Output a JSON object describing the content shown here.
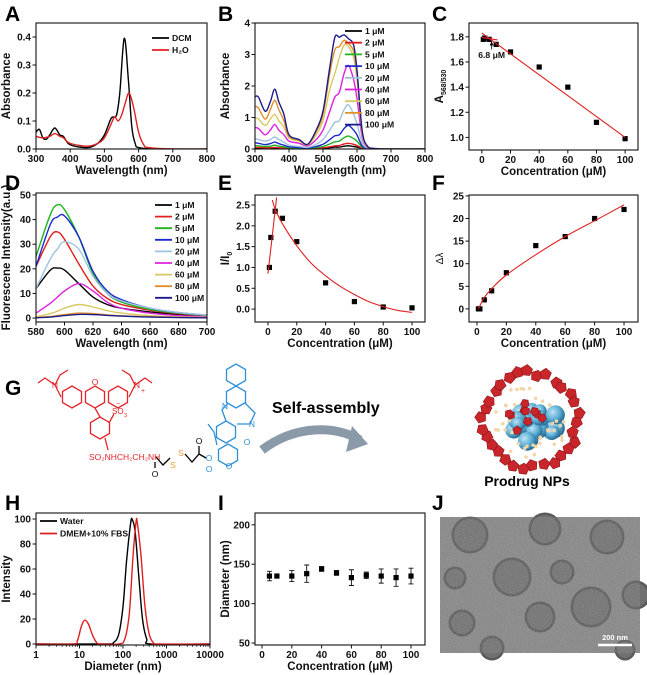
{
  "chart_data": [
    {
      "panel": "A",
      "type": "line",
      "xlabel": "Wavelength (nm)",
      "ylabel": "Absorbance",
      "xlim": [
        300,
        800
      ],
      "ylim": [
        0,
        0.45
      ],
      "xticks": [
        "300",
        "400",
        "500",
        "600",
        "700",
        "800"
      ],
      "yticks": [
        "0.0",
        "0.1",
        "0.2",
        "0.3",
        "0.4"
      ],
      "legend": "top-right",
      "series": [
        {
          "name": "DCM",
          "color": "#000000",
          "x": [
            300,
            310,
            320,
            330,
            340,
            355,
            370,
            380,
            400,
            450,
            480,
            500,
            520,
            535,
            545,
            558,
            570,
            580,
            590,
            600,
            650,
            800
          ],
          "y": [
            0.06,
            0.07,
            0.04,
            0.035,
            0.05,
            0.075,
            0.05,
            0.045,
            0.015,
            0.005,
            0.02,
            0.05,
            0.11,
            0.12,
            0.2,
            0.395,
            0.25,
            0.08,
            0.02,
            0.005,
            0,
            0
          ]
        },
        {
          "name": "H₂O",
          "color": "#e02020",
          "x": [
            300,
            320,
            340,
            355,
            370,
            380,
            400,
            450,
            480,
            500,
            520,
            530,
            540,
            550,
            560,
            572,
            585,
            600,
            615,
            630,
            700,
            800
          ],
          "y": [
            0.045,
            0.04,
            0.045,
            0.055,
            0.045,
            0.04,
            0.02,
            0.01,
            0.02,
            0.04,
            0.09,
            0.115,
            0.1,
            0.12,
            0.16,
            0.2,
            0.15,
            0.06,
            0.015,
            0.005,
            0,
            0
          ]
        }
      ]
    },
    {
      "panel": "B",
      "type": "line",
      "xlabel": "Wavelength (nm)",
      "ylabel": "Absorbance",
      "xlim": [
        300,
        800
      ],
      "ylim": [
        0,
        4
      ],
      "xticks": [
        "300",
        "400",
        "500",
        "600",
        "700",
        "800"
      ],
      "yticks": [
        "0",
        "1",
        "2",
        "3",
        "4"
      ],
      "legend": "top-right",
      "x": [
        300,
        310,
        330,
        345,
        358,
        370,
        385,
        400,
        430,
        455,
        480,
        500,
        520,
        535,
        548,
        562,
        575,
        590,
        600,
        615,
        630,
        650,
        700,
        800
      ],
      "series": [
        {
          "name": "1 μM",
          "color": "#000000",
          "y": [
            0.03,
            0.03,
            0.02,
            0.02,
            0.03,
            0.02,
            0.02,
            0.01,
            0.01,
            0,
            0.01,
            0.02,
            0.04,
            0.06,
            0.06,
            0.09,
            0.1,
            0.08,
            0.06,
            0.02,
            0,
            0,
            0,
            0
          ]
        },
        {
          "name": "2 μM",
          "color": "#e02020",
          "y": [
            0.05,
            0.05,
            0.04,
            0.04,
            0.05,
            0.04,
            0.03,
            0.02,
            0.01,
            0.01,
            0.02,
            0.04,
            0.07,
            0.1,
            0.11,
            0.16,
            0.18,
            0.15,
            0.11,
            0.03,
            0,
            0,
            0,
            0
          ]
        },
        {
          "name": "5 μM",
          "color": "#1db41d",
          "y": [
            0.11,
            0.1,
            0.08,
            0.09,
            0.12,
            0.09,
            0.07,
            0.04,
            0.03,
            0.02,
            0.05,
            0.08,
            0.16,
            0.23,
            0.25,
            0.36,
            0.41,
            0.33,
            0.25,
            0.06,
            0.01,
            0,
            0,
            0
          ]
        },
        {
          "name": "10 μM",
          "color": "#1a2ad0",
          "y": [
            0.2,
            0.18,
            0.14,
            0.17,
            0.22,
            0.17,
            0.12,
            0.07,
            0.05,
            0.03,
            0.08,
            0.15,
            0.3,
            0.42,
            0.45,
            0.65,
            0.75,
            0.6,
            0.45,
            0.1,
            0.02,
            0,
            0,
            0
          ]
        },
        {
          "name": "20 μM",
          "color": "#9ec3e0",
          "y": [
            0.33,
            0.3,
            0.25,
            0.3,
            0.38,
            0.3,
            0.22,
            0.12,
            0.08,
            0.05,
            0.15,
            0.3,
            0.6,
            0.85,
            0.9,
            1.25,
            1.4,
            1.1,
            0.8,
            0.2,
            0.03,
            0,
            0,
            0
          ]
        },
        {
          "name": "40 μM",
          "color": "#e020e0",
          "y": [
            0.68,
            0.65,
            0.45,
            0.6,
            0.78,
            0.6,
            0.45,
            0.25,
            0.18,
            0.1,
            0.3,
            0.6,
            1.2,
            1.65,
            1.8,
            2.4,
            2.65,
            2.2,
            1.6,
            0.4,
            0.06,
            0.01,
            0,
            0
          ]
        },
        {
          "name": "60 μM",
          "color": "#d8c860",
          "y": [
            1.0,
            0.95,
            0.75,
            0.95,
            1.1,
            0.9,
            0.7,
            0.35,
            0.25,
            0.13,
            0.45,
            0.9,
            1.9,
            2.4,
            2.9,
            3.3,
            3.25,
            2.9,
            2.2,
            0.5,
            0.08,
            0.02,
            0,
            0
          ]
        },
        {
          "name": "80 μM",
          "color": "#e0902a",
          "y": [
            1.35,
            1.3,
            0.95,
            1.25,
            1.55,
            1.25,
            0.9,
            0.4,
            0.28,
            0.15,
            0.55,
            1.1,
            2.4,
            3.15,
            3.25,
            3.45,
            3.35,
            3.1,
            2.4,
            0.55,
            0.1,
            0.02,
            0,
            0
          ]
        },
        {
          "name": "100 μM",
          "color": "#1a1a8a",
          "y": [
            1.65,
            1.65,
            1.2,
            1.5,
            1.9,
            1.5,
            1.1,
            0.45,
            0.3,
            0.15,
            0.6,
            1.2,
            2.6,
            3.55,
            3.55,
            3.62,
            3.5,
            3.3,
            2.5,
            0.6,
            0.1,
            0.02,
            0,
            0
          ]
        }
      ]
    },
    {
      "panel": "C",
      "type": "scatter",
      "xlabel": "Concentration (μM)",
      "ylabel": "A",
      "ylabel_sub": "568/530",
      "xlim": [
        -9,
        109
      ],
      "ylim": [
        0.9,
        1.91
      ],
      "xticks": [
        "0",
        "20",
        "40",
        "60",
        "80",
        "100"
      ],
      "yticks": [
        "1.0",
        "1.2",
        "1.4",
        "1.6",
        "1.8"
      ],
      "series": [
        {
          "type": "scatter",
          "color": "#000000",
          "x": [
            1,
            2,
            5,
            10,
            20,
            40,
            60,
            80,
            100
          ],
          "y": [
            1.78,
            1.79,
            1.78,
            1.74,
            1.68,
            1.56,
            1.4,
            1.12,
            0.99
          ]
        },
        {
          "type": "fit",
          "color": "#e02020",
          "x": [
            0,
            100
          ],
          "y": [
            1.83,
            1.0
          ]
        },
        {
          "type": "fit",
          "color": "#e02020",
          "x": [
            0,
            11
          ],
          "y": [
            1.795,
            1.775
          ]
        }
      ],
      "annotation": {
        "text": "6.8 μM",
        "x": 6.8
      }
    },
    {
      "panel": "D",
      "type": "line",
      "xlabel": "Wavelength (nm)",
      "ylabel": "Fluorescene Intensity(a.u.)",
      "xlim": [
        580,
        700
      ],
      "ylim": [
        -1.6,
        50.8
      ],
      "xticks": [
        "580",
        "600",
        "620",
        "640",
        "660",
        "680",
        "700"
      ],
      "yticks": [
        "0",
        "10",
        "20",
        "30",
        "40",
        "50"
      ],
      "legend": "top-right",
      "x": [
        580,
        590,
        595,
        600,
        610,
        620,
        630,
        640,
        660,
        680,
        700
      ],
      "series": [
        {
          "name": "1 μM",
          "color": "#000000",
          "y": [
            12,
            19.5,
            20.3,
            19.5,
            14,
            8.5,
            5.5,
            4,
            2.5,
            1.5,
            0.8
          ]
        },
        {
          "name": "2 μM",
          "color": "#e02020",
          "y": [
            21,
            33,
            35,
            32,
            22,
            13,
            8,
            5.5,
            3.2,
            1.8,
            1
          ]
        },
        {
          "name": "5 μM",
          "color": "#1db41d",
          "y": [
            25,
            42,
            46,
            44,
            33,
            18,
            10,
            6.5,
            3.5,
            2,
            1
          ]
        },
        {
          "name": "10 μM",
          "color": "#1a2ad0",
          "y": [
            21,
            38,
            41,
            41.5,
            33,
            19,
            11,
            7.5,
            4,
            2.2,
            1.2
          ]
        },
        {
          "name": "20 μM",
          "color": "#9ec3e0",
          "y": [
            12,
            24,
            28,
            31,
            28,
            17,
            10,
            7,
            4,
            2.2,
            1.2
          ]
        },
        {
          "name": "40 μM",
          "color": "#e020e0",
          "y": [
            2,
            6,
            8.5,
            11,
            14,
            11,
            6.5,
            4,
            2,
            1,
            0.5
          ]
        },
        {
          "name": "60 μM",
          "color": "#d8c860",
          "y": [
            0.5,
            1.8,
            2.8,
            4,
            5.5,
            4.5,
            3,
            2,
            1,
            0.5,
            0.3
          ]
        },
        {
          "name": "80 μM",
          "color": "#e0902a",
          "y": [
            0.2,
            0.6,
            1,
            1.4,
            2,
            1.8,
            1.3,
            0.9,
            0.5,
            0.3,
            0.2
          ]
        },
        {
          "name": "100 μM",
          "color": "#1a1a8a",
          "y": [
            0.1,
            0.4,
            0.7,
            1,
            1.5,
            1.4,
            1.1,
            0.8,
            0.4,
            0.2,
            0.1
          ]
        }
      ]
    },
    {
      "panel": "E",
      "type": "scatter",
      "xlabel": "Concentration (μM)",
      "ylabel": "I/I",
      "ylabel_sub": "0",
      "xlim": [
        -9,
        109
      ],
      "ylim": [
        -0.31,
        2.74
      ],
      "xticks": [
        "0",
        "20",
        "40",
        "60",
        "80",
        "100"
      ],
      "yticks": [
        "0.0",
        "0.5",
        "1.0",
        "1.5",
        "2.0",
        "2.5"
      ],
      "series": [
        {
          "type": "scatter",
          "color": "#000000",
          "x": [
            1,
            2,
            5,
            10,
            20,
            40,
            60,
            80,
            100
          ],
          "y": [
            1.0,
            1.72,
            2.35,
            2.18,
            1.62,
            0.63,
            0.18,
            0.05,
            0.03
          ]
        },
        {
          "type": "fit",
          "color": "#e02020",
          "x": [
            0,
            6
          ],
          "y": [
            0.85,
            2.68
          ]
        },
        {
          "type": "fit",
          "color": "#e02020",
          "x": [
            3,
            5,
            10,
            20,
            30,
            40,
            50,
            60,
            70,
            80,
            90,
            100
          ],
          "y": [
            2.62,
            2.4,
            2.05,
            1.52,
            1.1,
            0.8,
            0.55,
            0.35,
            0.18,
            0.06,
            -0.03,
            -0.08
          ]
        }
      ]
    },
    {
      "panel": "F",
      "type": "scatter",
      "xlabel": "Concentration (μM)",
      "ylabel": "Δλ",
      "xlim": [
        -5.4,
        109.5
      ],
      "ylim": [
        -2.9,
        25.2
      ],
      "xticks": [
        "0",
        "20",
        "40",
        "60",
        "80",
        "100"
      ],
      "yticks": [
        "0",
        "5",
        "10",
        "15",
        "20",
        "25"
      ],
      "series": [
        {
          "type": "scatter",
          "color": "#000000",
          "x": [
            1,
            2,
            5,
            10,
            20,
            40,
            60,
            80,
            100
          ],
          "y": [
            0,
            0,
            2,
            4,
            8,
            14,
            16,
            20,
            22
          ]
        },
        {
          "type": "fit",
          "color": "#e02020",
          "x": [
            1,
            5,
            10,
            20,
            40,
            60,
            80,
            100
          ],
          "y": [
            0,
            2.5,
            4.5,
            7.5,
            12,
            16,
            19.5,
            23
          ]
        }
      ]
    },
    {
      "panel": "H",
      "type": "line",
      "xscale": "log",
      "xlabel": "Diameter (nm)",
      "ylabel": "Intensity",
      "xlim": [
        1,
        10000
      ],
      "ylim": [
        -0.8,
        104.8
      ],
      "xticks": [
        "1",
        "10",
        "100",
        "1000",
        "10000"
      ],
      "yticks": [
        "0",
        "20",
        "40",
        "60",
        "80",
        "100"
      ],
      "legend": "top-left",
      "series": [
        {
          "name": "Water",
          "color": "#000000",
          "x": [
            1,
            40,
            60,
            80,
            100,
            120,
            150,
            165,
            190,
            230,
            280,
            350,
            450,
            10000
          ],
          "y": [
            0,
            0,
            1,
            8,
            30,
            65,
            97,
            99,
            90,
            55,
            20,
            4,
            0,
            0
          ]
        },
        {
          "name": "DMEM+10% FBS",
          "color": "#e02020",
          "x": [
            1,
            7,
            9,
            11,
            13,
            16,
            20,
            25,
            30,
            80,
            110,
            140,
            170,
            200,
            215,
            260,
            320,
            400,
            500,
            600,
            10000
          ],
          "y": [
            0,
            0,
            3,
            14,
            19,
            16,
            7,
            1,
            0,
            0,
            4,
            25,
            70,
            98,
            96,
            70,
            30,
            8,
            1,
            0,
            0
          ]
        }
      ]
    },
    {
      "panel": "I",
      "type": "scatter",
      "xlabel": "Concentration (μM)",
      "ylabel": "Diameter (nm)",
      "xlim": [
        -4.7,
        109.4
      ],
      "ylim": [
        47.5,
        215
      ],
      "xticks": [
        "0",
        "20",
        "40",
        "60",
        "80",
        "100"
      ],
      "yticks": [
        "50",
        "100",
        "150",
        "200"
      ],
      "series": [
        {
          "type": "errorbar",
          "color": "#000000",
          "x": [
            5,
            10,
            20,
            30,
            40,
            50,
            60,
            70,
            80,
            90,
            100
          ],
          "y": [
            135,
            135,
            135,
            138,
            144,
            139,
            133,
            136,
            135,
            133,
            135
          ],
          "err": [
            6,
            2,
            7,
            11,
            3,
            3,
            10,
            4,
            9,
            11,
            10
          ]
        }
      ]
    }
  ],
  "scheme": {
    "label": "G",
    "arrow_text": "Self-assembly",
    "np_label": "Prodrug NPs",
    "colors": {
      "rhodamine": "#e3262b",
      "linker": "#000000",
      "disulfide": "#e8a030",
      "camptothecin": "#2d8fd6",
      "arrow": "#8a9aa8"
    },
    "molecule": {
      "n_left": "N",
      "o_ring": "O",
      "n_plus": "N",
      "plus": "+",
      "so3": "SO",
      "so3_sub": "3",
      "so3_charge": "−",
      "chain": "SO₂NHCH₂CH₂NH",
      "carbonyl_o": "O",
      "s1": "S",
      "s2": "S",
      "ester_o": "O",
      "ester_o2": "O",
      "cpt_n1": "N",
      "cpt_n2": "N",
      "cpt_o1": "O",
      "cpt_o2": "O",
      "cpt_o3": "O",
      "cpt_o4": "O"
    }
  },
  "tem": {
    "label": "J",
    "scale_bar": "200 nm"
  }
}
